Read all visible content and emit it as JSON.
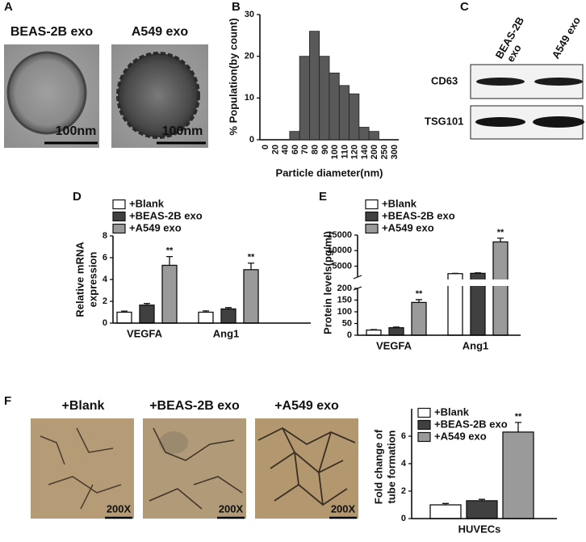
{
  "panel_labels": [
    "A",
    "B",
    "C",
    "D",
    "E",
    "F"
  ],
  "panel_a": {
    "titles": [
      "BEAS-2B exo",
      "A549 exo"
    ],
    "scale": [
      "100nm",
      "100nm"
    ]
  },
  "panel_c": {
    "lanes": [
      [
        "BEAS-2B",
        "exo"
      ],
      [
        "A549 exo"
      ]
    ],
    "rows": [
      "CD63",
      "TSG101"
    ]
  },
  "panel_f": {
    "titles": [
      "+Blank",
      "+BEAS-2B exo",
      "+A549 exo"
    ],
    "scale": [
      "200X",
      "200X",
      "200X"
    ]
  },
  "chart_data": [
    {
      "type": "bar",
      "y_label": "% Population(by count)",
      "x_label": "Particle diameter(nm)",
      "categories": [
        "0",
        "20",
        "40",
        "60",
        "70",
        "80",
        "90",
        "100",
        "110",
        "120",
        "140",
        "200",
        "250",
        "300"
      ],
      "values": [
        0,
        0,
        0,
        2,
        20,
        26,
        20,
        16,
        13,
        11,
        3,
        2,
        0,
        0
      ],
      "color": "#595959",
      "ylim": [
        0,
        30
      ],
      "yticks": [
        0,
        10,
        20,
        30
      ]
    },
    {
      "type": "grouped_bar",
      "y_label": [
        "Relative mRNA",
        "expression"
      ],
      "categories": [
        "VEGFA",
        "Ang1"
      ],
      "series": [
        {
          "name": "+Blank",
          "color": "#ffffff",
          "values": [
            1.0,
            1.0
          ],
          "errors": [
            0.1,
            0.12
          ]
        },
        {
          "name": "+BEAS-2B exo",
          "color": "#404040",
          "values": [
            1.65,
            1.3
          ],
          "errors": [
            0.15,
            0.12
          ]
        },
        {
          "name": "+A549 exo",
          "color": "#9a9a9a",
          "values": [
            5.3,
            4.9
          ],
          "errors": [
            0.8,
            0.6
          ]
        }
      ],
      "annotations": [
        "**",
        "**"
      ],
      "ylim": [
        0,
        8
      ],
      "yticks": [
        0,
        2,
        4,
        6,
        8
      ]
    },
    {
      "type": "grouped_bar",
      "y_label": [
        "Protein levels(pg/ml)"
      ],
      "categories": [
        "VEGFA",
        "Ang1"
      ],
      "series": [
        {
          "name": "+Blank",
          "color": "#ffffff",
          "values": [
            22,
            2600
          ],
          "errors": [
            2,
            100
          ]
        },
        {
          "name": "+BEAS-2B exo",
          "color": "#404040",
          "values": [
            32,
            2700
          ],
          "errors": [
            3,
            150
          ]
        },
        {
          "name": "+A549 exo",
          "color": "#9a9a9a",
          "values": [
            140,
            12800
          ],
          "errors": [
            12,
            1200
          ]
        }
      ],
      "annotations": [
        "**",
        "**"
      ],
      "axis_break": true,
      "ylim": [
        0,
        200
      ],
      "yticks": [
        0,
        50,
        100,
        150,
        200
      ],
      "ylim_upper": [
        1500,
        15000
      ],
      "yticks_upper": [
        5000,
        10000,
        15000
      ]
    },
    {
      "type": "grouped_bar",
      "y_label": [
        "Fold change of",
        "tube formation"
      ],
      "categories": [
        "HUVECs"
      ],
      "series": [
        {
          "name": "+Blank",
          "color": "#ffffff",
          "values": [
            1.0
          ],
          "errors": [
            0.1
          ]
        },
        {
          "name": "+BEAS-2B exo",
          "color": "#404040",
          "values": [
            1.3
          ],
          "errors": [
            0.1
          ]
        },
        {
          "name": "+A549 exo",
          "color": "#9a9a9a",
          "values": [
            6.3
          ],
          "errors": [
            0.7
          ]
        }
      ],
      "annotations": [
        "**"
      ],
      "ylim": [
        0,
        8
      ],
      "yticks": [
        0,
        2,
        4,
        6
      ]
    }
  ]
}
